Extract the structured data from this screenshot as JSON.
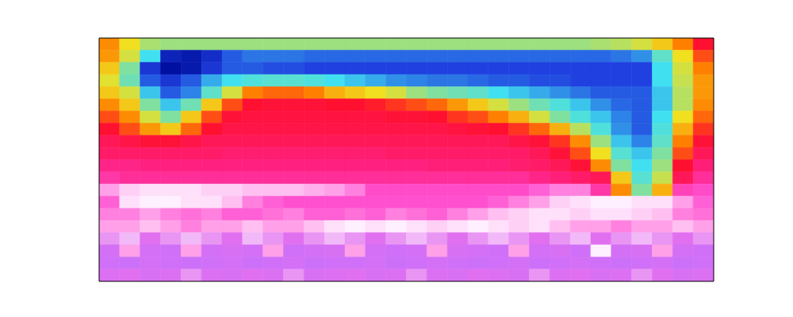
{
  "chart_data": {
    "type": "heatmap",
    "tick_labels": false,
    "cells": [
      [
        0.45,
        0.38,
        0.33,
        0.32,
        0.32,
        0.32,
        0.32,
        0.32,
        0.32,
        0.32,
        0.32,
        0.32,
        0.32,
        0.32,
        0.32,
        0.32,
        0.32,
        0.32,
        0.32,
        0.32,
        0.32,
        0.32,
        0.32,
        0.32,
        0.33,
        0.34,
        0.36,
        0.4,
        0.46,
        0.55
      ],
      [
        0.44,
        0.36,
        0.22,
        0.04,
        0.02,
        0.06,
        0.12,
        0.14,
        0.14,
        0.14,
        0.13,
        0.13,
        0.13,
        0.13,
        0.13,
        0.13,
        0.13,
        0.13,
        0.13,
        0.13,
        0.13,
        0.13,
        0.13,
        0.13,
        0.13,
        0.14,
        0.16,
        0.26,
        0.38,
        0.5
      ],
      [
        0.4,
        0.3,
        0.08,
        0.0,
        0.02,
        0.08,
        0.12,
        0.12,
        0.11,
        0.11,
        0.1,
        0.1,
        0.1,
        0.1,
        0.1,
        0.1,
        0.1,
        0.1,
        0.1,
        0.1,
        0.1,
        0.1,
        0.1,
        0.1,
        0.1,
        0.1,
        0.1,
        0.22,
        0.36,
        0.46
      ],
      [
        0.37,
        0.28,
        0.12,
        0.08,
        0.12,
        0.18,
        0.22,
        0.24,
        0.25,
        0.25,
        0.24,
        0.22,
        0.2,
        0.18,
        0.16,
        0.15,
        0.14,
        0.14,
        0.13,
        0.12,
        0.12,
        0.11,
        0.11,
        0.1,
        0.1,
        0.1,
        0.1,
        0.22,
        0.35,
        0.44
      ],
      [
        0.4,
        0.36,
        0.2,
        0.12,
        0.15,
        0.26,
        0.36,
        0.46,
        0.48,
        0.48,
        0.46,
        0.42,
        0.4,
        0.38,
        0.36,
        0.32,
        0.3,
        0.28,
        0.26,
        0.22,
        0.2,
        0.18,
        0.16,
        0.14,
        0.12,
        0.12,
        0.12,
        0.2,
        0.34,
        0.44
      ],
      [
        0.45,
        0.4,
        0.3,
        0.2,
        0.28,
        0.4,
        0.5,
        0.55,
        0.56,
        0.56,
        0.56,
        0.55,
        0.55,
        0.54,
        0.52,
        0.5,
        0.48,
        0.44,
        0.4,
        0.36,
        0.32,
        0.28,
        0.24,
        0.2,
        0.16,
        0.13,
        0.12,
        0.2,
        0.34,
        0.45
      ],
      [
        0.5,
        0.45,
        0.36,
        0.3,
        0.4,
        0.5,
        0.56,
        0.57,
        0.57,
        0.57,
        0.57,
        0.57,
        0.57,
        0.57,
        0.56,
        0.56,
        0.55,
        0.52,
        0.5,
        0.46,
        0.42,
        0.36,
        0.3,
        0.24,
        0.2,
        0.15,
        0.12,
        0.22,
        0.38,
        0.48
      ],
      [
        0.55,
        0.5,
        0.44,
        0.4,
        0.48,
        0.55,
        0.58,
        0.58,
        0.58,
        0.58,
        0.58,
        0.58,
        0.58,
        0.58,
        0.58,
        0.58,
        0.58,
        0.57,
        0.56,
        0.55,
        0.52,
        0.48,
        0.42,
        0.34,
        0.24,
        0.16,
        0.12,
        0.24,
        0.42,
        0.52
      ],
      [
        0.6,
        0.58,
        0.56,
        0.56,
        0.58,
        0.6,
        0.6,
        0.6,
        0.6,
        0.6,
        0.6,
        0.6,
        0.6,
        0.6,
        0.6,
        0.6,
        0.6,
        0.6,
        0.6,
        0.6,
        0.58,
        0.56,
        0.52,
        0.45,
        0.32,
        0.2,
        0.15,
        0.26,
        0.46,
        0.56
      ],
      [
        0.62,
        0.62,
        0.62,
        0.62,
        0.62,
        0.62,
        0.63,
        0.63,
        0.63,
        0.63,
        0.63,
        0.63,
        0.63,
        0.63,
        0.62,
        0.62,
        0.62,
        0.62,
        0.62,
        0.62,
        0.62,
        0.6,
        0.56,
        0.5,
        0.38,
        0.25,
        0.2,
        0.3,
        0.5,
        0.6
      ],
      [
        0.66,
        0.66,
        0.65,
        0.65,
        0.65,
        0.65,
        0.65,
        0.65,
        0.65,
        0.65,
        0.65,
        0.65,
        0.65,
        0.65,
        0.65,
        0.65,
        0.64,
        0.64,
        0.64,
        0.64,
        0.63,
        0.62,
        0.6,
        0.56,
        0.45,
        0.3,
        0.22,
        0.32,
        0.55,
        0.64
      ],
      [
        0.7,
        0.68,
        0.68,
        0.68,
        0.68,
        0.68,
        0.68,
        0.68,
        0.68,
        0.68,
        0.68,
        0.68,
        0.68,
        0.68,
        0.68,
        0.68,
        0.68,
        0.68,
        0.68,
        0.68,
        0.68,
        0.66,
        0.64,
        0.62,
        0.6,
        0.4,
        0.25,
        0.35,
        0.6,
        0.68
      ],
      [
        0.8,
        0.83,
        0.84,
        0.84,
        0.84,
        0.83,
        0.83,
        0.82,
        0.82,
        0.82,
        0.81,
        0.8,
        0.78,
        0.74,
        0.74,
        0.74,
        0.74,
        0.74,
        0.74,
        0.74,
        0.74,
        0.76,
        0.78,
        0.78,
        0.7,
        0.45,
        0.3,
        0.42,
        0.72,
        0.74
      ],
      [
        0.76,
        0.84,
        0.85,
        0.85,
        0.84,
        0.84,
        0.82,
        0.78,
        0.76,
        0.75,
        0.75,
        0.75,
        0.75,
        0.75,
        0.75,
        0.75,
        0.75,
        0.75,
        0.75,
        0.76,
        0.78,
        0.8,
        0.83,
        0.84,
        0.85,
        0.85,
        0.84,
        0.84,
        0.8,
        0.76
      ],
      [
        0.78,
        0.78,
        0.8,
        0.78,
        0.77,
        0.78,
        0.76,
        0.76,
        0.77,
        0.78,
        0.76,
        0.76,
        0.77,
        0.76,
        0.78,
        0.77,
        0.76,
        0.78,
        0.8,
        0.82,
        0.83,
        0.84,
        0.84,
        0.83,
        0.84,
        0.84,
        0.83,
        0.82,
        0.78,
        0.77
      ],
      [
        0.8,
        0.8,
        0.82,
        0.8,
        0.78,
        0.8,
        0.8,
        0.82,
        0.8,
        0.8,
        0.82,
        0.84,
        0.85,
        0.84,
        0.85,
        0.84,
        0.83,
        0.84,
        0.85,
        0.84,
        0.83,
        0.84,
        0.82,
        0.8,
        0.8,
        0.78,
        0.8,
        0.8,
        0.82,
        0.8
      ],
      [
        0.9,
        0.88,
        0.92,
        0.9,
        0.88,
        0.9,
        0.92,
        0.88,
        0.9,
        0.92,
        0.9,
        0.88,
        0.9,
        0.92,
        0.9,
        0.88,
        0.9,
        0.92,
        0.9,
        0.88,
        0.9,
        0.92,
        0.9,
        0.88,
        0.92,
        0.9,
        0.88,
        0.9,
        0.92,
        0.9
      ],
      [
        0.95,
        0.8,
        0.95,
        0.96,
        0.8,
        0.95,
        0.94,
        0.95,
        0.8,
        0.96,
        0.95,
        0.94,
        0.8,
        0.95,
        0.96,
        0.95,
        0.8,
        0.94,
        0.95,
        0.96,
        0.8,
        0.95,
        0.94,
        0.96,
        0.85,
        0.95,
        0.94,
        0.8,
        0.95,
        0.96
      ],
      [
        0.96,
        0.97,
        0.95,
        0.96,
        0.97,
        0.96,
        0.95,
        0.97,
        0.96,
        0.95,
        0.97,
        0.96,
        0.96,
        0.95,
        0.97,
        0.96,
        0.95,
        0.96,
        0.97,
        0.96,
        0.95,
        0.97,
        0.96,
        0.95,
        0.96,
        0.97,
        0.96,
        0.95,
        0.97,
        0.96
      ],
      [
        0.93,
        0.92,
        0.94,
        0.93,
        0.9,
        0.93,
        0.94,
        0.92,
        0.93,
        0.9,
        0.94,
        0.93,
        0.92,
        0.94,
        0.93,
        0.9,
        0.93,
        0.94,
        0.92,
        0.93,
        0.94,
        0.9,
        0.93,
        0.92,
        0.94,
        0.93,
        0.9,
        0.92,
        0.94,
        0.93
      ]
    ]
  }
}
